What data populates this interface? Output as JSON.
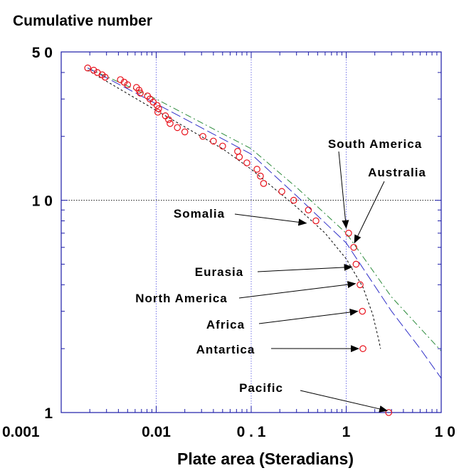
{
  "chart_data": {
    "type": "scatter",
    "title": "Cumulative   number",
    "xlabel": "Plate  area  (Steradians)",
    "ylabel": "",
    "xscale": "log",
    "yscale": "log",
    "xlim": [
      0.001,
      10
    ],
    "ylim": [
      1,
      50
    ],
    "x_ticks": [
      {
        "value": 0.001,
        "label": "0.001"
      },
      {
        "value": 0.01,
        "label": "0.01"
      },
      {
        "value": 0.1,
        "label": "0 . 1"
      },
      {
        "value": 1,
        "label": "1"
      },
      {
        "value": 10,
        "label": "1 0"
      }
    ],
    "y_ticks": [
      {
        "value": 1,
        "label": "1"
      },
      {
        "value": 10,
        "label": "1 0"
      },
      {
        "value": 50,
        "label": "5 0"
      }
    ],
    "colors": {
      "points": "#e8101a",
      "axis": "#1c1ca8",
      "grid": "#5050e0",
      "curve_green": "#2a8a3a",
      "curve_blue": "#3030c8",
      "curve_black": "#000000"
    },
    "points": [
      {
        "x": 0.0019,
        "y": 42
      },
      {
        "x": 0.0022,
        "y": 41
      },
      {
        "x": 0.0024,
        "y": 40
      },
      {
        "x": 0.0027,
        "y": 39
      },
      {
        "x": 0.0029,
        "y": 38
      },
      {
        "x": 0.0042,
        "y": 37
      },
      {
        "x": 0.0046,
        "y": 36
      },
      {
        "x": 0.005,
        "y": 35
      },
      {
        "x": 0.0062,
        "y": 34
      },
      {
        "x": 0.0066,
        "y": 33
      },
      {
        "x": 0.0068,
        "y": 32
      },
      {
        "x": 0.0081,
        "y": 31
      },
      {
        "x": 0.0086,
        "y": 30
      },
      {
        "x": 0.0093,
        "y": 29
      },
      {
        "x": 0.0102,
        "y": 28
      },
      {
        "x": 0.0106,
        "y": 27
      },
      {
        "x": 0.0104,
        "y": 26
      },
      {
        "x": 0.0125,
        "y": 25
      },
      {
        "x": 0.0135,
        "y": 24
      },
      {
        "x": 0.014,
        "y": 23
      },
      {
        "x": 0.0167,
        "y": 22
      },
      {
        "x": 0.02,
        "y": 21
      },
      {
        "x": 0.031,
        "y": 20
      },
      {
        "x": 0.04,
        "y": 19
      },
      {
        "x": 0.05,
        "y": 18
      },
      {
        "x": 0.072,
        "y": 17
      },
      {
        "x": 0.075,
        "y": 16
      },
      {
        "x": 0.09,
        "y": 15
      },
      {
        "x": 0.115,
        "y": 14
      },
      {
        "x": 0.125,
        "y": 13
      },
      {
        "x": 0.135,
        "y": 12
      },
      {
        "x": 0.21,
        "y": 11
      },
      {
        "x": 0.28,
        "y": 10
      },
      {
        "x": 0.4,
        "y": 9
      },
      {
        "x": 0.48,
        "y": 8
      },
      {
        "x": 1.06,
        "y": 7
      },
      {
        "x": 1.2,
        "y": 6
      },
      {
        "x": 1.27,
        "y": 5
      },
      {
        "x": 1.4,
        "y": 4
      },
      {
        "x": 1.48,
        "y": 3
      },
      {
        "x": 1.5,
        "y": 2
      },
      {
        "x": 2.8,
        "y": 1
      }
    ],
    "curves": [
      {
        "style": "dash-dot",
        "color": "#2a8a3a",
        "points": [
          [
            0.0019,
            42
          ],
          [
            0.01,
            30
          ],
          [
            0.1,
            17.5
          ],
          [
            0.3,
            11.5
          ],
          [
            1,
            7
          ],
          [
            3,
            3.5
          ],
          [
            10,
            1.95
          ]
        ]
      },
      {
        "style": "long-dash",
        "color": "#3030c8",
        "points": [
          [
            0.0019,
            42
          ],
          [
            0.01,
            28.5
          ],
          [
            0.1,
            16.5
          ],
          [
            0.3,
            10.5
          ],
          [
            1,
            6.3
          ],
          [
            3,
            3
          ],
          [
            6,
            2
          ],
          [
            10,
            1.45
          ]
        ]
      },
      {
        "style": "short-dash",
        "color": "#000000",
        "points": [
          [
            0.0019,
            41
          ],
          [
            0.01,
            26.5
          ],
          [
            0.05,
            17.5
          ],
          [
            0.1,
            14
          ],
          [
            0.3,
            9.3
          ],
          [
            0.6,
            7
          ],
          [
            1,
            5.3
          ],
          [
            1.5,
            3.9
          ],
          [
            1.9,
            2.9
          ],
          [
            2.2,
            2.2
          ],
          [
            2.3,
            2
          ]
        ]
      }
    ],
    "annotations": [
      {
        "text": "South   America",
        "point": {
          "x": 1.0,
          "y": 7.4
        }
      },
      {
        "text": "Australia",
        "point": {
          "x": 1.22,
          "y": 6.3
        }
      },
      {
        "text": "Somalia",
        "point": {
          "x": 0.38,
          "y": 7.8
        }
      },
      {
        "text": "Eurasia",
        "point": {
          "x": 1.15,
          "y": 4.85
        }
      },
      {
        "text": "North   America",
        "point": {
          "x": 1.25,
          "y": 4.05
        }
      },
      {
        "text": "Africa",
        "point": {
          "x": 1.32,
          "y": 3.0
        }
      },
      {
        "text": "Antartica",
        "point": {
          "x": 1.35,
          "y": 2.0
        }
      },
      {
        "text": "Pacific",
        "point": {
          "x": 2.7,
          "y": 1.02
        }
      }
    ]
  }
}
